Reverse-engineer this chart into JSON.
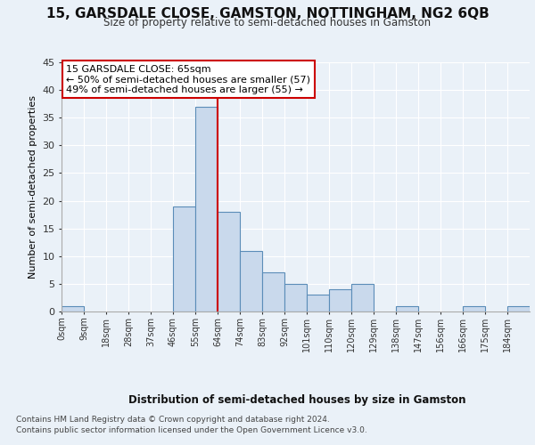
{
  "title": "15, GARSDALE CLOSE, GAMSTON, NOTTINGHAM, NG2 6QB",
  "subtitle": "Size of property relative to semi-detached houses in Gamston",
  "xlabel": "Distribution of semi-detached houses by size in Gamston",
  "ylabel": "Number of semi-detached properties",
  "footer_line1": "Contains HM Land Registry data © Crown copyright and database right 2024.",
  "footer_line2": "Contains public sector information licensed under the Open Government Licence v3.0.",
  "bin_labels": [
    "0sqm",
    "9sqm",
    "18sqm",
    "28sqm",
    "37sqm",
    "46sqm",
    "55sqm",
    "64sqm",
    "74sqm",
    "83sqm",
    "92sqm",
    "101sqm",
    "110sqm",
    "120sqm",
    "129sqm",
    "138sqm",
    "147sqm",
    "156sqm",
    "166sqm",
    "175sqm",
    "184sqm"
  ],
  "bar_values": [
    1,
    0,
    0,
    0,
    0,
    19,
    37,
    18,
    11,
    7,
    5,
    3,
    4,
    5,
    0,
    1,
    0,
    0,
    1,
    0,
    1
  ],
  "bar_color": "#c9d9ec",
  "bar_edge_color": "#5b8db8",
  "annotation_text_line1": "15 GARSDALE CLOSE: 65sqm",
  "annotation_text_line2": "← 50% of semi-detached houses are smaller (57)",
  "annotation_text_line3": "49% of semi-detached houses are larger (55) →",
  "ylim": [
    0,
    45
  ],
  "yticks": [
    0,
    5,
    10,
    15,
    20,
    25,
    30,
    35,
    40,
    45
  ],
  "bg_color": "#eaf1f8",
  "plot_bg_color": "#eaf1f8",
  "grid_color": "#ffffff",
  "bin_width": 9,
  "red_line_color": "#cc0000",
  "annotation_box_color": "#ffffff",
  "annotation_box_edge": "#cc0000",
  "red_line_bin_index": 7
}
